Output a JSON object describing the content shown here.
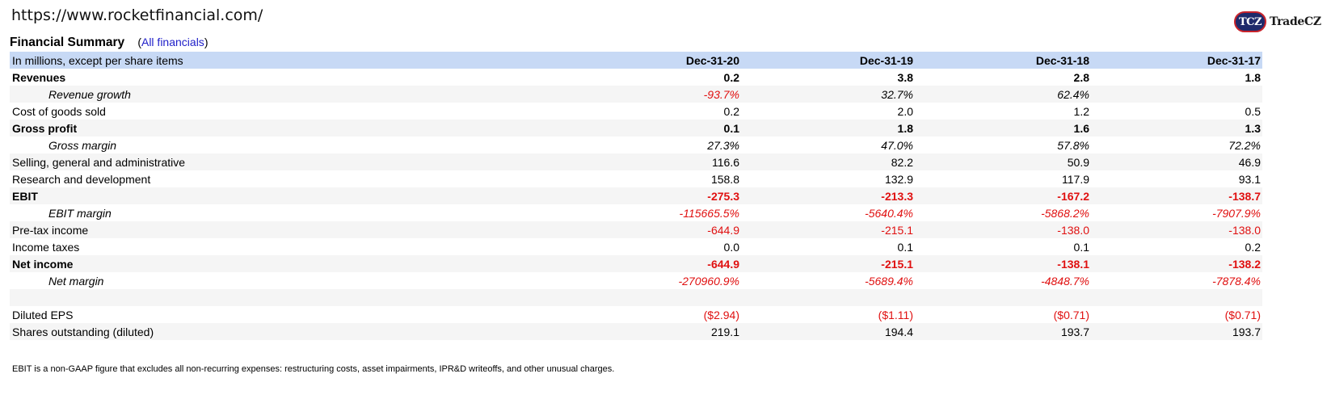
{
  "url": "https://www.rocketfinancial.com/",
  "logo": {
    "badge": "TCZ",
    "text": "TradeCZ"
  },
  "title": "Financial Summary",
  "link_prefix": "(",
  "link_text": "All financials",
  "link_suffix": ")",
  "header": {
    "label": "In millions, except per share items",
    "cols": [
      "Dec-31-20",
      "Dec-31-19",
      "Dec-31-18",
      "Dec-31-17"
    ]
  },
  "rows": [
    {
      "label": "Revenues",
      "style": "bold",
      "values": [
        "0.2",
        "3.8",
        "2.8",
        "1.8"
      ],
      "neg": [
        false,
        false,
        false,
        false
      ]
    },
    {
      "label": "Revenue growth",
      "style": "italic",
      "values": [
        "-93.7%",
        "32.7%",
        "62.4%",
        ""
      ],
      "neg": [
        true,
        false,
        false,
        false
      ]
    },
    {
      "label": "Cost of goods sold",
      "style": "normal",
      "values": [
        "0.2",
        "2.0",
        "1.2",
        "0.5"
      ],
      "neg": [
        false,
        false,
        false,
        false
      ]
    },
    {
      "label": "Gross profit",
      "style": "bold",
      "values": [
        "0.1",
        "1.8",
        "1.6",
        "1.3"
      ],
      "neg": [
        false,
        false,
        false,
        false
      ]
    },
    {
      "label": "Gross margin",
      "style": "italic",
      "values": [
        "27.3%",
        "47.0%",
        "57.8%",
        "72.2%"
      ],
      "neg": [
        false,
        false,
        false,
        false
      ]
    },
    {
      "label": "Selling, general and administrative",
      "style": "normal",
      "values": [
        "116.6",
        "82.2",
        "50.9",
        "46.9"
      ],
      "neg": [
        false,
        false,
        false,
        false
      ]
    },
    {
      "label": "Research and development",
      "style": "normal",
      "values": [
        "158.8",
        "132.9",
        "117.9",
        "93.1"
      ],
      "neg": [
        false,
        false,
        false,
        false
      ]
    },
    {
      "label": "EBIT",
      "style": "bold",
      "values": [
        "-275.3",
        "-213.3",
        "-167.2",
        "-138.7"
      ],
      "neg": [
        true,
        true,
        true,
        true
      ]
    },
    {
      "label": "EBIT margin",
      "style": "italic",
      "values": [
        "-115665.5%",
        "-5640.4%",
        "-5868.2%",
        "-7907.9%"
      ],
      "neg": [
        true,
        true,
        true,
        true
      ]
    },
    {
      "label": "Pre-tax income",
      "style": "normal",
      "values": [
        "-644.9",
        "-215.1",
        "-138.0",
        "-138.0"
      ],
      "neg": [
        true,
        true,
        true,
        true
      ]
    },
    {
      "label": "Income taxes",
      "style": "normal",
      "values": [
        "0.0",
        "0.1",
        "0.1",
        "0.2"
      ],
      "neg": [
        false,
        false,
        false,
        false
      ]
    },
    {
      "label": "Net income",
      "style": "bold",
      "values": [
        "-644.9",
        "-215.1",
        "-138.1",
        "-138.2"
      ],
      "neg": [
        true,
        true,
        true,
        true
      ]
    },
    {
      "label": "Net margin",
      "style": "italic",
      "values": [
        "-270960.9%",
        "-5689.4%",
        "-4848.7%",
        "-7878.4%"
      ],
      "neg": [
        true,
        true,
        true,
        true
      ]
    },
    {
      "label": "",
      "style": "spacer",
      "values": [
        "",
        "",
        "",
        ""
      ],
      "neg": [
        false,
        false,
        false,
        false
      ]
    },
    {
      "label": "Diluted EPS",
      "style": "normal",
      "values": [
        "($2.94)",
        "($1.11)",
        "($0.71)",
        "($0.71)"
      ],
      "neg": [
        true,
        true,
        true,
        true
      ]
    },
    {
      "label": "Shares outstanding (diluted)",
      "style": "normal",
      "values": [
        "219.1",
        "194.4",
        "193.7",
        "193.7"
      ],
      "neg": [
        false,
        false,
        false,
        false
      ]
    },
    {
      "label": "",
      "style": "spacer",
      "values": [
        "",
        "",
        "",
        ""
      ],
      "neg": [
        false,
        false,
        false,
        false
      ]
    }
  ],
  "footnote": "EBIT is a non-GAAP figure that excludes all non-recurring expenses: restructuring costs, asset impairments, IPR&D writeoffs, and other unusual charges."
}
